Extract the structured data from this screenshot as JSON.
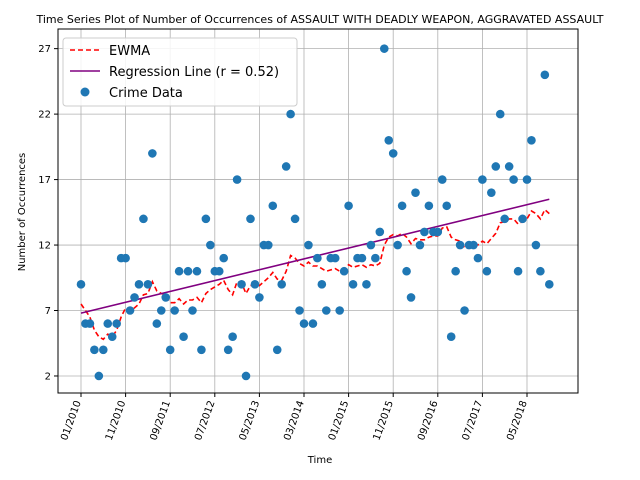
{
  "chart_data": {
    "type": "scatter",
    "title": "Time Series Plot of Number of Occurrences of ASSAULT WITH DEADLY WEAPON, AGGRAVATED ASSAULT",
    "xlabel": "Time",
    "ylabel": "Number of Occurrences",
    "x_ticks": [
      "01/2010",
      "11/2010",
      "09/2011",
      "07/2012",
      "05/2013",
      "03/2014",
      "01/2015",
      "11/2015",
      "09/2016",
      "07/2017",
      "05/2018"
    ],
    "y_ticks": [
      2,
      7,
      12,
      17,
      22,
      27
    ],
    "ylim": [
      0.7,
      28.5
    ],
    "grid": true,
    "legend_position": "top-left",
    "legend": {
      "ewma": "EWMA",
      "regression": "Regression Line (r = 0.52)",
      "data": "Crime Data"
    },
    "colors": {
      "data": "#1f77b4",
      "ewma": "#ff0000",
      "regression": "#800080"
    },
    "x_start": "01/2010",
    "x_step": "1 month",
    "values": [
      9,
      6,
      6,
      4,
      2,
      4,
      6,
      5,
      6,
      11,
      11,
      7,
      8,
      9,
      14,
      9,
      19,
      6,
      7,
      8,
      4,
      7,
      10,
      5,
      10,
      7,
      10,
      4,
      14,
      12,
      10,
      10,
      11,
      4,
      5,
      17,
      9,
      2,
      14,
      9,
      8,
      12,
      12,
      15,
      4,
      9,
      18,
      22,
      14,
      7,
      6,
      12,
      6,
      11,
      9,
      7,
      11,
      11,
      7,
      10,
      15,
      9,
      11,
      11,
      9,
      12,
      11,
      13,
      27,
      20,
      19,
      12,
      15,
      10,
      8,
      16,
      12,
      13,
      15,
      13,
      13,
      17,
      15,
      5,
      10,
      12,
      7,
      12,
      12,
      11,
      17,
      10,
      16,
      18,
      22,
      14,
      18,
      17,
      10,
      14,
      17,
      20,
      12,
      10,
      25,
      9
    ],
    "ewma": [
      7.5,
      7.0,
      6.5,
      5.5,
      5.0,
      4.8,
      5.2,
      5.0,
      5.5,
      6.5,
      7.2,
      7.0,
      7.2,
      7.5,
      8.2,
      8.3,
      9.2,
      8.5,
      8.3,
      8.2,
      7.6,
      7.6,
      7.9,
      7.5,
      7.8,
      7.8,
      8.0,
      7.6,
      8.3,
      8.6,
      8.8,
      9.0,
      9.3,
      8.6,
      8.2,
      9.2,
      9.1,
      8.3,
      8.9,
      9.0,
      8.9,
      9.2,
      9.5,
      9.9,
      9.4,
      9.3,
      10.0,
      11.2,
      11.0,
      10.6,
      10.4,
      10.7,
      10.4,
      10.4,
      10.2,
      10.0,
      10.1,
      10.2,
      10.0,
      10.1,
      10.5,
      10.3,
      10.4,
      10.5,
      10.3,
      10.5,
      10.4,
      10.6,
      12.0,
      12.6,
      12.8,
      12.7,
      12.9,
      12.6,
      12.1,
      12.5,
      12.4,
      12.4,
      12.6,
      12.7,
      12.7,
      13.3,
      13.4,
      12.6,
      12.4,
      12.3,
      11.8,
      11.9,
      12.1,
      12.0,
      12.3,
      12.1,
      12.5,
      12.9,
      13.7,
      13.8,
      14.0,
      14.0,
      13.6,
      13.8,
      14.0,
      14.6,
      14.4,
      14.0,
      14.7,
      14.4
    ],
    "regression": {
      "start": 6.8,
      "end": 15.5
    }
  }
}
